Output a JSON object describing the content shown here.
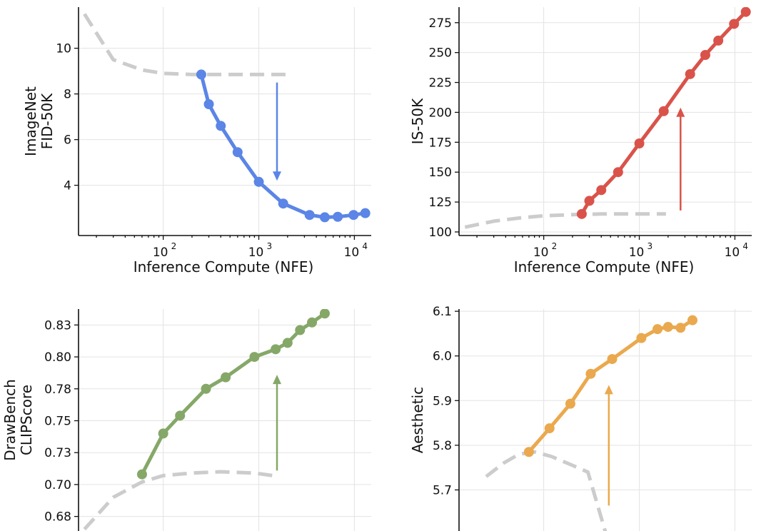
{
  "chart_data": [
    {
      "type": "line",
      "xlabel": "Inference Compute (NFE)",
      "ylabel": [
        "ImageNet",
        "FID-50K"
      ],
      "xscale": "log",
      "xlim": [
        13,
        15000
      ],
      "ylim": [
        1.8,
        11.8
      ],
      "yticks": [
        4,
        6,
        8,
        10
      ],
      "ytick_labels": [
        "4",
        "6",
        "8",
        "10"
      ],
      "xticks": [
        100,
        1000,
        10000
      ],
      "xtick_labels": [
        "10",
        "10",
        "10"
      ],
      "xtick_exponents": [
        "2",
        "3",
        "4"
      ],
      "grid": true,
      "color": "#5b85e6",
      "arrow": {
        "direction": "down",
        "x": 1550,
        "y_start": 8.5,
        "y_end": 4.2
      },
      "series": [
        {
          "role": "baseline",
          "style": "dashed",
          "color": "#cccccc",
          "x": [
            15,
            30,
            60,
            100,
            200,
            400,
            900,
            1900
          ],
          "y": [
            11.5,
            9.5,
            9.05,
            8.9,
            8.85,
            8.85,
            8.85,
            8.85
          ]
        },
        {
          "role": "scaled",
          "style": "solid-markers",
          "x": [
            250,
            300,
            400,
            600,
            1000,
            1800,
            3400,
            4900,
            6700,
            9800,
            13000
          ],
          "y": [
            8.85,
            7.55,
            6.6,
            5.45,
            4.15,
            3.2,
            2.7,
            2.6,
            2.62,
            2.7,
            2.78
          ]
        }
      ]
    },
    {
      "type": "line",
      "xlabel": "Inference Compute (NFE)",
      "ylabel": [
        "IS-50K"
      ],
      "xscale": "log",
      "xlim": [
        13,
        15000
      ],
      "ylim": [
        97,
        288
      ],
      "yticks": [
        100,
        125,
        150,
        175,
        200,
        225,
        250,
        275
      ],
      "ytick_labels": [
        "100",
        "125",
        "150",
        "175",
        "200",
        "225",
        "250",
        "275"
      ],
      "xticks": [
        100,
        1000,
        10000
      ],
      "xtick_labels": [
        "10",
        "10",
        "10"
      ],
      "xtick_exponents": [
        "2",
        "3",
        "4"
      ],
      "grid": true,
      "color": "#d9534a",
      "arrow": {
        "direction": "up",
        "x": 2700,
        "y_start": 118,
        "y_end": 204
      },
      "series": [
        {
          "role": "baseline",
          "style": "dashed",
          "color": "#cccccc",
          "x": [
            15,
            30,
            60,
            100,
            200,
            400,
            900,
            1900
          ],
          "y": [
            104,
            109,
            112,
            113.5,
            114.5,
            115,
            115,
            115
          ]
        },
        {
          "role": "scaled",
          "style": "solid-markers",
          "x": [
            250,
            300,
            400,
            600,
            1000,
            1800,
            3400,
            4900,
            6700,
            9800,
            13000
          ],
          "y": [
            115,
            126,
            135,
            150,
            174,
            201,
            232,
            248,
            260,
            274,
            284
          ]
        }
      ]
    },
    {
      "type": "line",
      "ylabel": [
        "DrawBench",
        "CLIPScore"
      ],
      "xscale": "log",
      "xlim": [
        13,
        15000
      ],
      "ylim": [
        0.6636,
        0.8375
      ],
      "yticks": [
        0.675,
        0.7,
        0.725,
        0.75,
        0.775,
        0.8,
        0.825
      ],
      "ytick_labels": [
        "0.68",
        "0.70",
        "0.73",
        "0.75",
        "0.78",
        "0.80",
        "0.83"
      ],
      "xticks": [
        100,
        1000,
        10000
      ],
      "grid": true,
      "color": "#85a868",
      "arrow": {
        "direction": "up",
        "x": 1550,
        "y_start": 0.711,
        "y_end": 0.786
      },
      "series": [
        {
          "role": "baseline",
          "style": "dashed",
          "color": "#cccccc",
          "x": [
            15,
            30,
            60,
            100,
            200,
            400,
            900,
            1400
          ],
          "y": [
            0.665,
            0.69,
            0.702,
            0.707,
            0.709,
            0.71,
            0.709,
            0.707
          ]
        },
        {
          "role": "scaled",
          "style": "solid-markers",
          "x": [
            60,
            100,
            150,
            280,
            450,
            900,
            1500,
            2000,
            2700,
            3600,
            4900
          ],
          "y": [
            0.708,
            0.74,
            0.754,
            0.775,
            0.784,
            0.8,
            0.806,
            0.811,
            0.821,
            0.827,
            0.834
          ]
        }
      ]
    },
    {
      "type": "line",
      "ylabel": [
        "Aesthetic"
      ],
      "xscale": "log",
      "xlim": [
        13,
        15000
      ],
      "ylim": [
        5.608,
        6.105
      ],
      "yticks": [
        5.7,
        5.8,
        5.9,
        6.0,
        6.1
      ],
      "ytick_labels": [
        "5.7",
        "5.8",
        "5.9",
        "6.0",
        "6.1"
      ],
      "xticks": [
        100,
        1000,
        10000
      ],
      "grid": true,
      "color": "#eaa94e",
      "arrow": {
        "direction": "up",
        "x": 480,
        "y_start": 5.665,
        "y_end": 5.935
      },
      "series": [
        {
          "role": "baseline",
          "style": "dashed",
          "color": "#cccccc",
          "x": [
            25,
            38,
            55,
            80,
            120,
            200,
            290,
            450
          ],
          "y": [
            5.73,
            5.76,
            5.78,
            5.785,
            5.775,
            5.755,
            5.74,
            5.6
          ]
        },
        {
          "role": "scaled",
          "style": "solid-markers",
          "x": [
            70,
            115,
            190,
            310,
            520,
            1050,
            1550,
            2000,
            2700,
            3600
          ],
          "y": [
            5.785,
            5.838,
            5.893,
            5.96,
            5.993,
            6.04,
            6.06,
            6.065,
            6.063,
            6.08
          ]
        }
      ]
    }
  ]
}
